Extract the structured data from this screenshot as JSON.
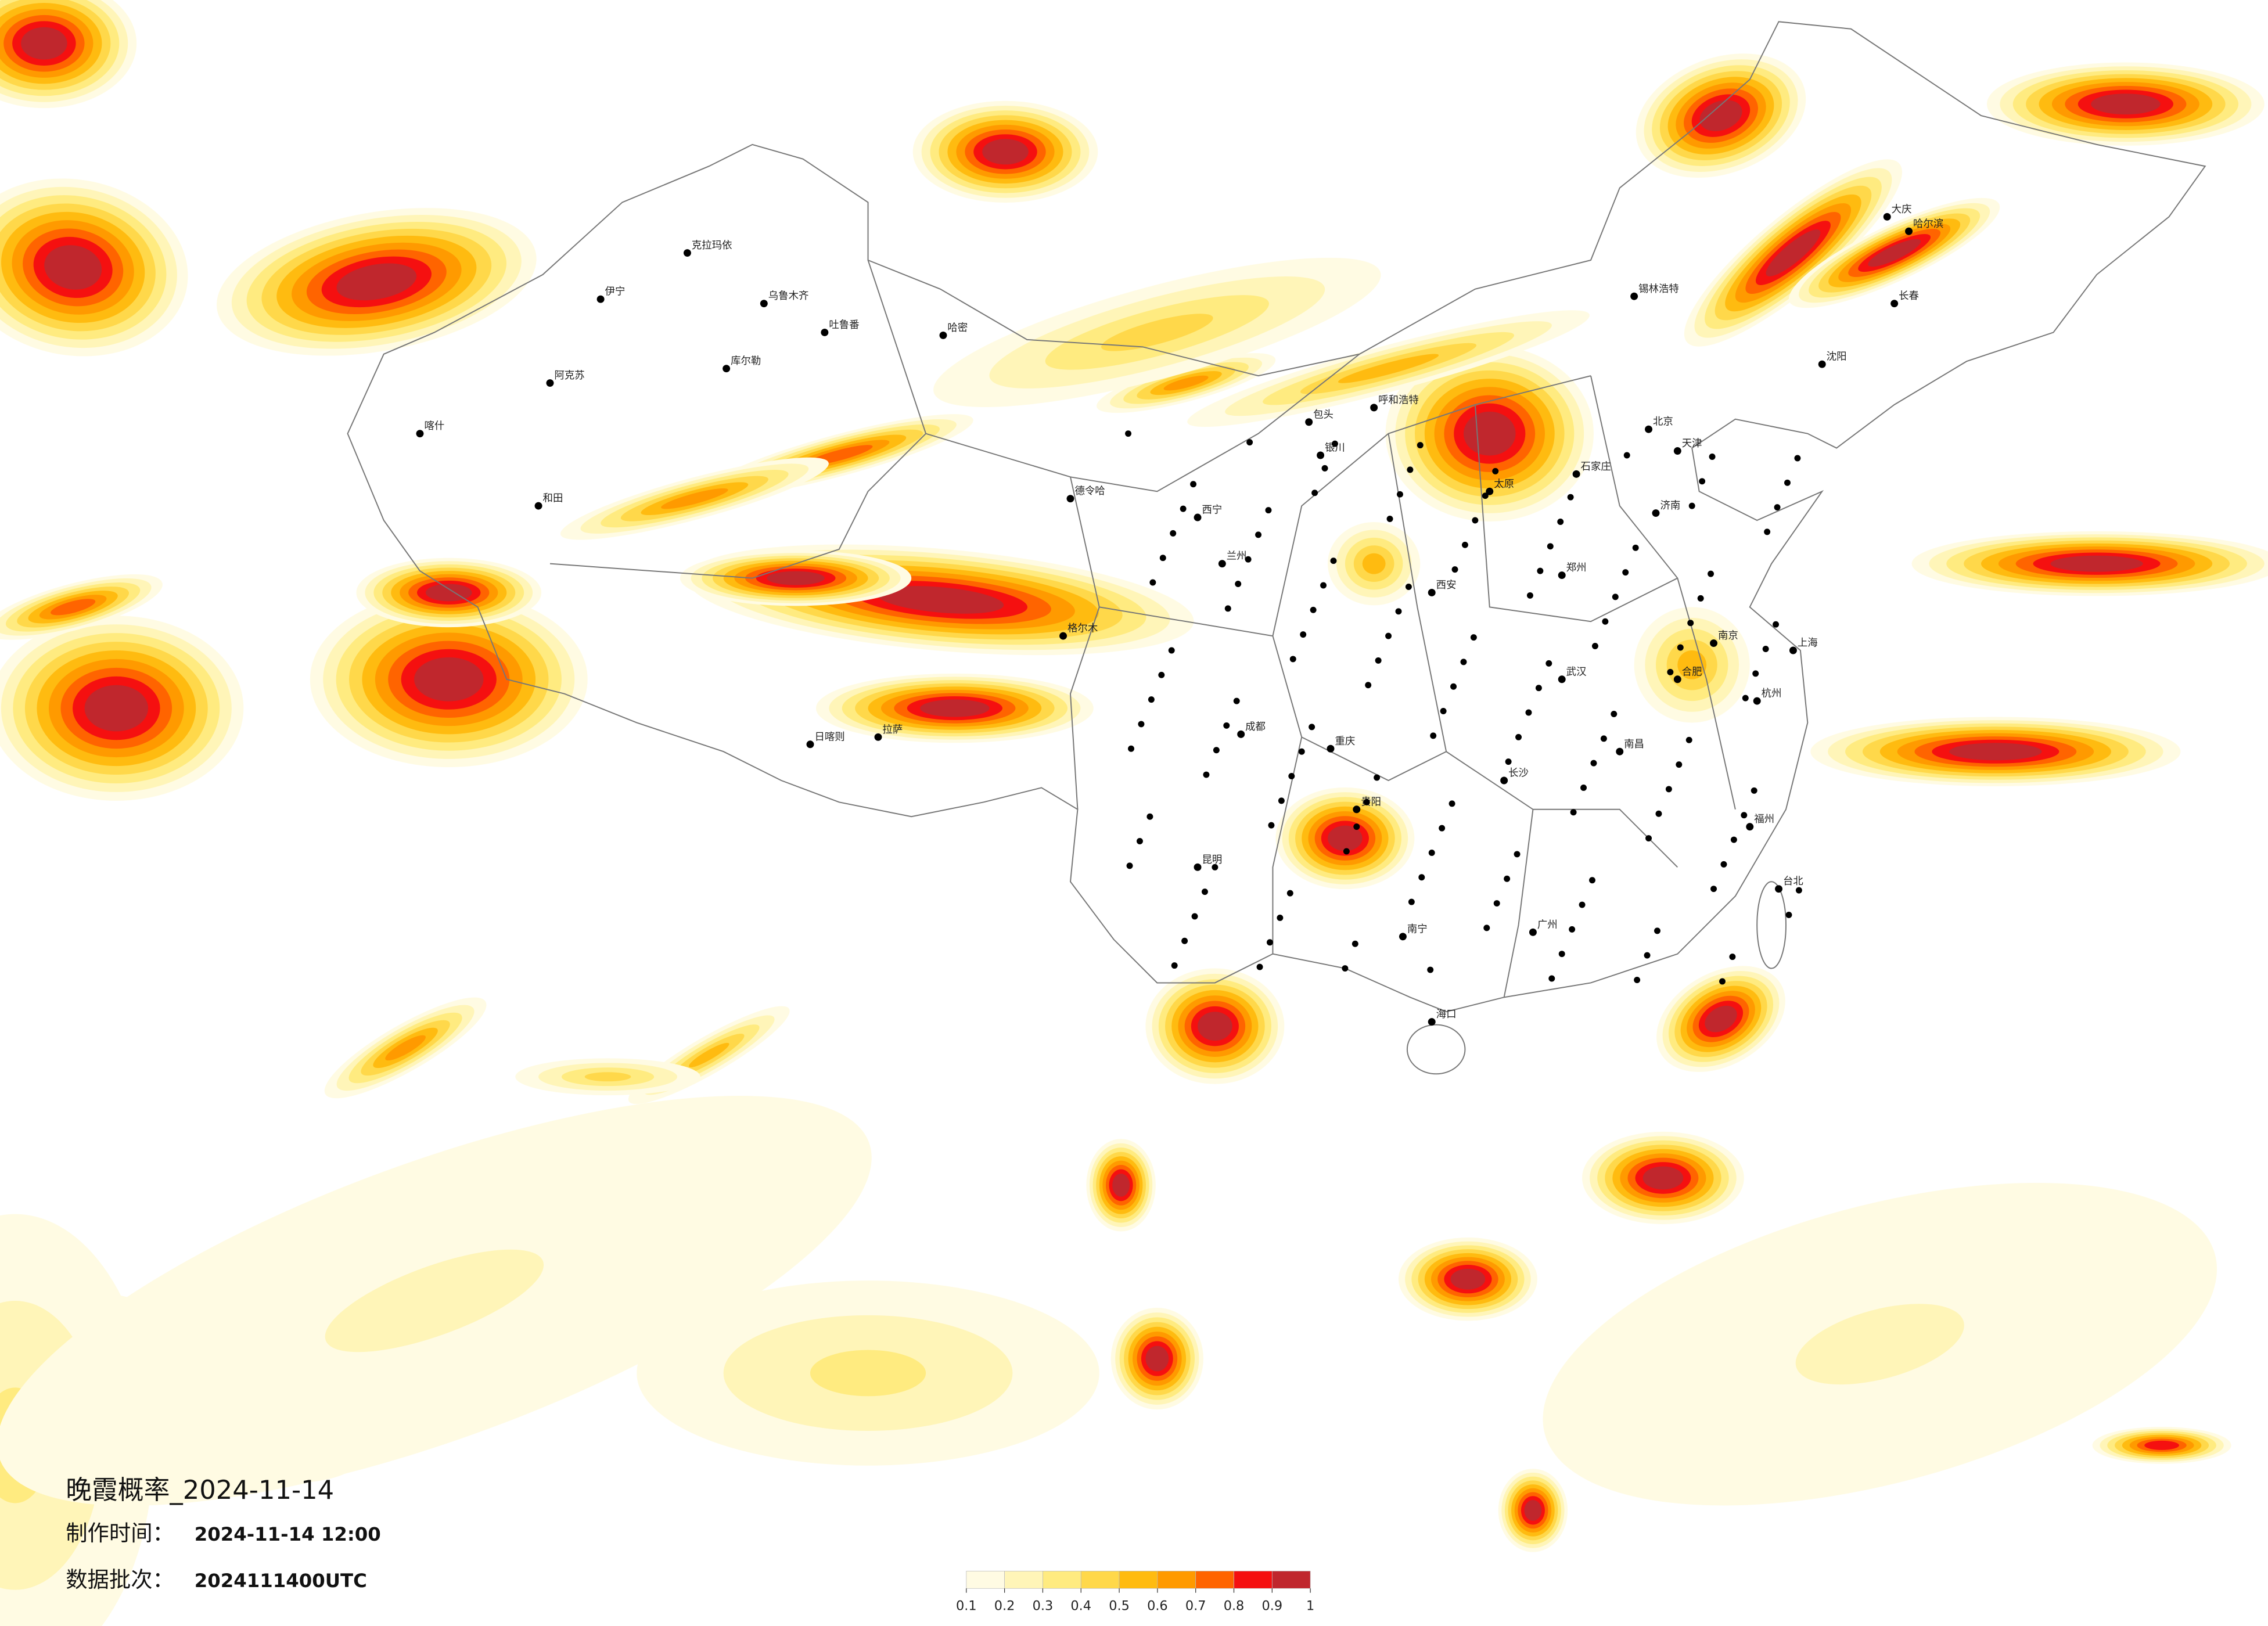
{
  "title": "晚霞概率_2024-11-14",
  "production_time": {
    "label": "制作时间：",
    "value": "2024-11-14 12:00"
  },
  "data_batch": {
    "label": "数据批次：",
    "value": "2024111400UTC"
  },
  "legend": {
    "colors": [
      "#fffbe3",
      "#fff5b8",
      "#ffeb80",
      "#ffd84a",
      "#ffbb10",
      "#ff9a00",
      "#ff6400",
      "#f51010",
      "#c0272d"
    ],
    "ticks": [
      0.1,
      0.2,
      0.3,
      0.4,
      0.5,
      0.6,
      0.7,
      0.8,
      0.9,
      1
    ]
  },
  "cities": [
    "伊宁",
    "克拉玛依",
    "乌鲁木齐",
    "吐鲁番",
    "哈密",
    "库尔勒",
    "阿克苏",
    "喀什",
    "和田",
    "格尔木",
    "德令哈",
    "拉萨",
    "日喀则",
    "西宁",
    "兰州",
    "银川",
    "呼和浩特",
    "包头",
    "北京",
    "天津",
    "石家庄",
    "太原",
    "济南",
    "郑州",
    "西安",
    "成都",
    "重庆",
    "贵阳",
    "昆明",
    "南宁",
    "长沙",
    "武汉",
    "南昌",
    "合肥",
    "南京",
    "上海",
    "杭州",
    "福州",
    "广州",
    "海口",
    "沈阳",
    "长春",
    "哈尔滨",
    "大庆",
    "锡林浩特",
    "台北"
  ]
}
